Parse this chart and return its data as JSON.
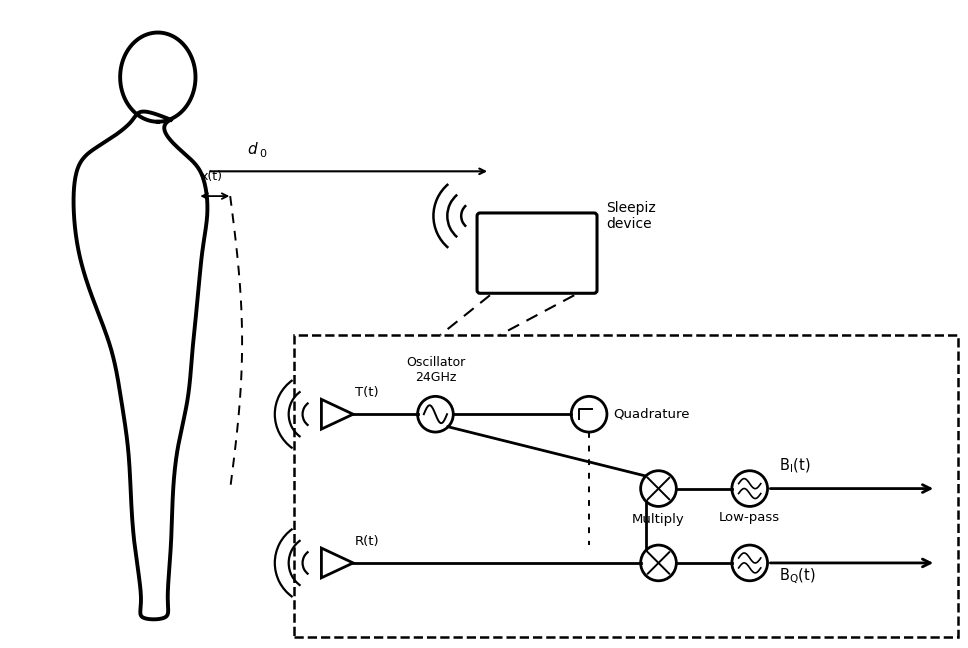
{
  "bg_color": "#ffffff",
  "line_color": "#000000",
  "fig_width": 9.68,
  "fig_height": 6.48,
  "dpi": 100,
  "sleepiz_label": "Sleepiz\ndevice",
  "d0_label": "d",
  "d0_sub": "0",
  "xt_label": "x(t)",
  "osc_label": "Oscillator\n24GHz",
  "quadrature_label": "Quadrature",
  "multiply_label": "Multiply",
  "lowpass_label": "Low-pass",
  "Tt_label": "T(t)",
  "Rt_label": "R(t)"
}
